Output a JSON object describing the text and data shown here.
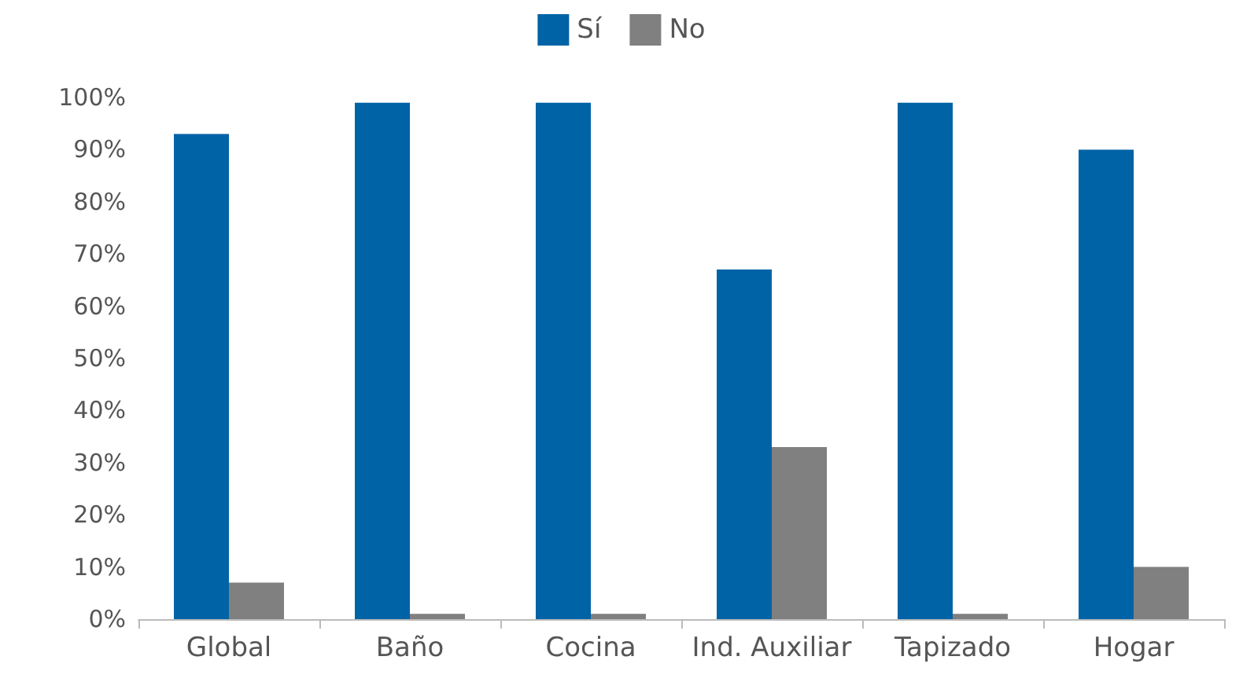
{
  "chart_data": {
    "type": "bar",
    "categories": [
      "Global",
      "Baño",
      "Cocina",
      "Ind. Auxiliar",
      "Tapizado",
      "Hogar"
    ],
    "series": [
      {
        "name": "Sí",
        "color": "#0063a6",
        "values": [
          93,
          99,
          99,
          67,
          99,
          90
        ]
      },
      {
        "name": "No",
        "color": "#808080",
        "values": [
          7,
          1,
          1,
          33,
          1,
          10
        ]
      }
    ],
    "ylim": [
      0,
      100
    ],
    "yticks": [
      {
        "value": 0,
        "label": "0%"
      },
      {
        "value": 10,
        "label": "10%"
      },
      {
        "value": 20,
        "label": "20%"
      },
      {
        "value": 30,
        "label": "30%"
      },
      {
        "value": 40,
        "label": "40%"
      },
      {
        "value": 50,
        "label": "50%"
      },
      {
        "value": 60,
        "label": "60%"
      },
      {
        "value": 70,
        "label": "70%"
      },
      {
        "value": 80,
        "label": "80%"
      },
      {
        "value": 90,
        "label": "90%"
      },
      {
        "value": 100,
        "label": "100%"
      }
    ],
    "grid": false,
    "legend": "top"
  }
}
